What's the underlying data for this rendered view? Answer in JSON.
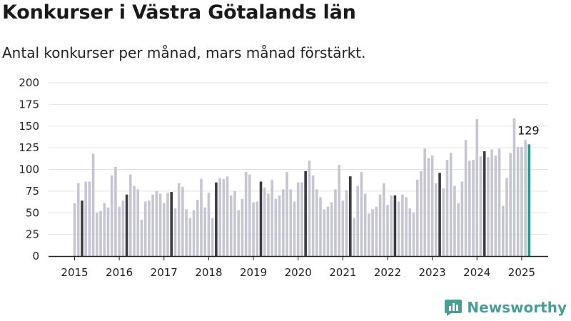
{
  "header": {
    "title": "Konkurser i Västra Götalands län",
    "subtitle": "Antal konkurser per månad, mars månad förstärkt."
  },
  "brand": {
    "name": "Newsworthy",
    "icon": "bar-chart-icon"
  },
  "colors": {
    "bar": "#c6c5d2",
    "march": "#3b3a45",
    "latest": "#1a9c8e",
    "grid": "#e2e2e2",
    "axis": "#222222",
    "brand": "#4a9e96"
  },
  "chart_data": {
    "type": "bar",
    "start": "2015-01",
    "ylim": [
      0,
      200
    ],
    "yticks": [
      0,
      25,
      50,
      75,
      100,
      125,
      150,
      175,
      200
    ],
    "xticks": [
      "2015",
      "2016",
      "2017",
      "2018",
      "2019",
      "2020",
      "2021",
      "2022",
      "2023",
      "2024",
      "2025"
    ],
    "highlight_month": "mars",
    "grid": true,
    "values": [
      61,
      84,
      64,
      86,
      86,
      118,
      50,
      52,
      61,
      56,
      93,
      103,
      57,
      64,
      71,
      94,
      81,
      77,
      42,
      63,
      64,
      71,
      75,
      72,
      61,
      73,
      74,
      55,
      84,
      80,
      54,
      44,
      53,
      65,
      89,
      56,
      73,
      44,
      85,
      90,
      89,
      92,
      70,
      75,
      53,
      66,
      97,
      94,
      62,
      63,
      86,
      79,
      72,
      88,
      66,
      70,
      77,
      97,
      77,
      63,
      85,
      85,
      98,
      110,
      93,
      77,
      68,
      54,
      57,
      62,
      77,
      105,
      64,
      76,
      92,
      44,
      81,
      97,
      72,
      49,
      54,
      57,
      71,
      84,
      59,
      70,
      70,
      63,
      71,
      68,
      55,
      50,
      88,
      98,
      124,
      113,
      116,
      84,
      96,
      78,
      111,
      119,
      81,
      61,
      86,
      134,
      110,
      111,
      158,
      115,
      121,
      114,
      123,
      116,
      124,
      58,
      90,
      119,
      159,
      126,
      126,
      134,
      129
    ],
    "latest_label": "129"
  }
}
